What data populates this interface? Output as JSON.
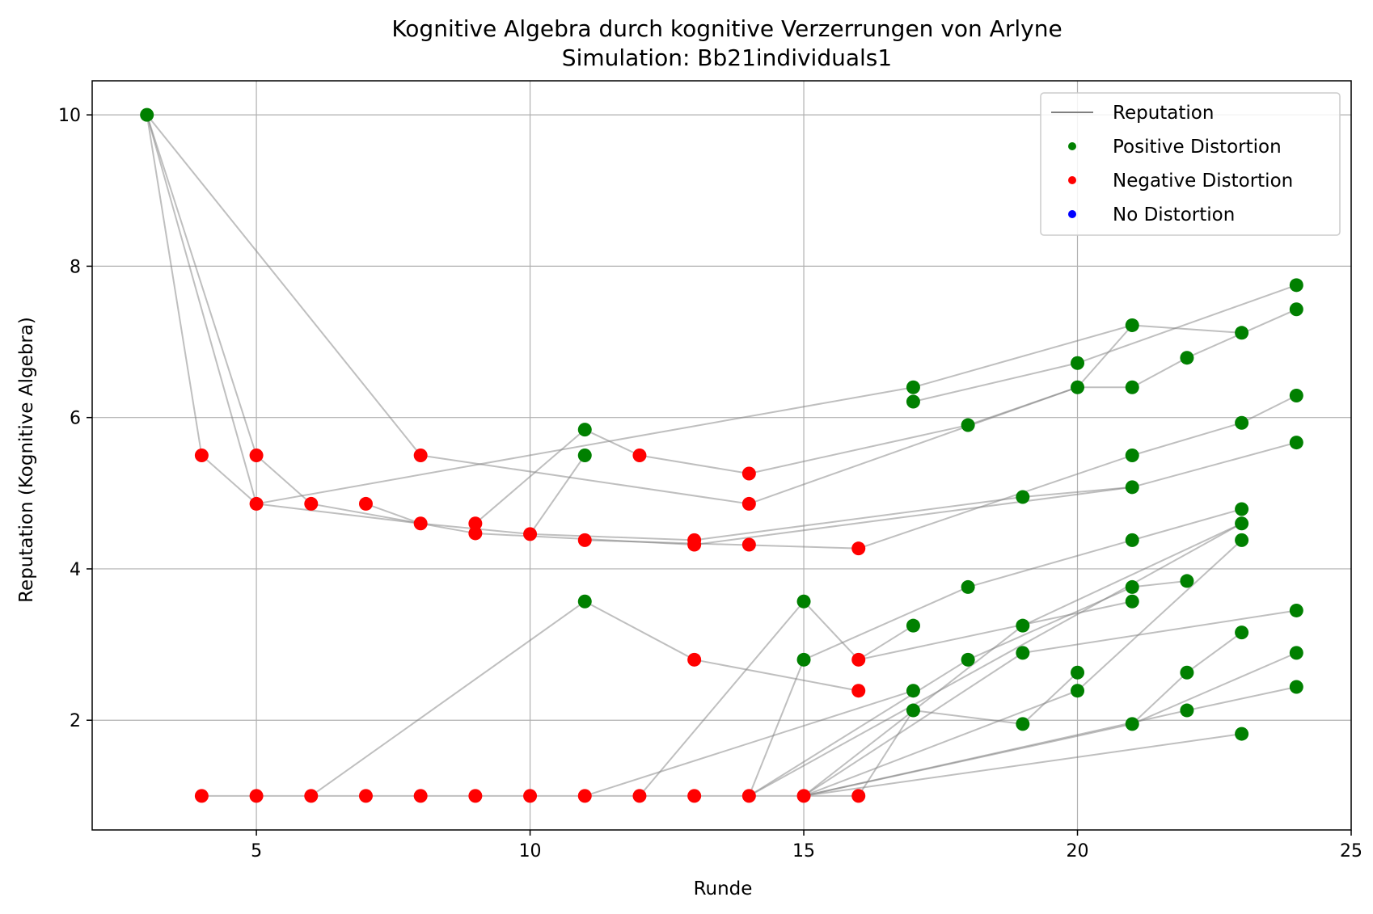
{
  "chart_data": {
    "type": "scatter",
    "title": "Kognitive Algebra durch kognitive Verzerrungen von Arlyne",
    "subtitle": "Simulation: Bb21individuals1",
    "xlabel": "Runde",
    "ylabel": "Reputation (Kognitive Algebra)",
    "xlim": [
      2,
      25
    ],
    "ylim": [
      0.55,
      10.45
    ],
    "xticks": [
      5,
      10,
      15,
      20,
      25
    ],
    "yticks": [
      2,
      4,
      6,
      8,
      10
    ],
    "grid": true,
    "legend_position": "top-right",
    "legend": [
      {
        "label": "Reputation",
        "kind": "line",
        "color": "#808080"
      },
      {
        "label": "Positive Distortion",
        "kind": "marker",
        "color": "#008000"
      },
      {
        "label": "Negative Distortion",
        "kind": "marker",
        "color": "#ff0000"
      },
      {
        "label": "No Distortion",
        "kind": "marker",
        "color": "#0000ff"
      }
    ],
    "colors": {
      "positive": "#008000",
      "negative": "#ff0000",
      "none": "#0000ff",
      "line": "#808080",
      "grid": "#b0b0b0"
    },
    "line_segments": [
      [
        [
          3,
          10
        ],
        [
          4,
          5.5
        ]
      ],
      [
        [
          3,
          10
        ],
        [
          5,
          5.5
        ]
      ],
      [
        [
          3,
          10
        ],
        [
          5,
          4.86
        ]
      ],
      [
        [
          3,
          10
        ],
        [
          8,
          5.5
        ]
      ],
      [
        [
          4,
          5.5
        ],
        [
          5,
          4.86
        ]
      ],
      [
        [
          5,
          5.5
        ],
        [
          6,
          4.86
        ]
      ],
      [
        [
          5,
          4.86
        ],
        [
          8,
          4.6
        ]
      ],
      [
        [
          6,
          4.86
        ],
        [
          9,
          4.47
        ]
      ],
      [
        [
          7,
          4.86
        ],
        [
          8,
          4.6
        ]
      ],
      [
        [
          8,
          4.6
        ],
        [
          10,
          4.46
        ]
      ],
      [
        [
          9,
          4.6
        ],
        [
          11,
          5.84
        ]
      ],
      [
        [
          9,
          4.47
        ],
        [
          13,
          4.32
        ]
      ],
      [
        [
          10,
          4.46
        ],
        [
          11,
          5.5
        ]
      ],
      [
        [
          10,
          4.46
        ],
        [
          13,
          4.38
        ]
      ],
      [
        [
          5,
          4.86
        ],
        [
          17,
          6.4
        ]
      ],
      [
        [
          11,
          5.84
        ],
        [
          12,
          5.5
        ]
      ],
      [
        [
          12,
          5.5
        ],
        [
          14,
          5.26
        ]
      ],
      [
        [
          8,
          5.5
        ],
        [
          14,
          4.86
        ]
      ],
      [
        [
          14,
          5.26
        ],
        [
          18,
          5.9
        ]
      ],
      [
        [
          14,
          4.86
        ],
        [
          20,
          6.4
        ]
      ],
      [
        [
          13,
          4.32
        ],
        [
          21,
          5.08
        ]
      ],
      [
        [
          11,
          4.38
        ],
        [
          16,
          4.27
        ]
      ],
      [
        [
          16,
          4.27
        ],
        [
          21,
          5.5
        ]
      ],
      [
        [
          17,
          6.4
        ],
        [
          21,
          7.22
        ]
      ],
      [
        [
          17,
          6.21
        ],
        [
          20,
          6.72
        ]
      ],
      [
        [
          18,
          5.9
        ],
        [
          20,
          6.4
        ]
      ],
      [
        [
          20,
          6.4
        ],
        [
          21,
          7.22
        ]
      ],
      [
        [
          20,
          6.72
        ],
        [
          24,
          7.75
        ]
      ],
      [
        [
          21,
          6.4
        ],
        [
          22,
          6.79
        ]
      ],
      [
        [
          22,
          6.79
        ],
        [
          24,
          7.43
        ]
      ],
      [
        [
          20,
          6.4
        ],
        [
          21,
          6.4
        ]
      ],
      [
        [
          21,
          7.22
        ],
        [
          23,
          7.12
        ]
      ],
      [
        [
          21,
          5.5
        ],
        [
          23,
          5.93
        ]
      ],
      [
        [
          23,
          5.93
        ],
        [
          24,
          6.29
        ]
      ],
      [
        [
          21,
          5.08
        ],
        [
          24,
          5.67
        ]
      ],
      [
        [
          19,
          4.95
        ],
        [
          21,
          5.08
        ]
      ],
      [
        [
          13,
          4.38
        ],
        [
          19,
          4.95
        ]
      ],
      [
        [
          4,
          1
        ],
        [
          16,
          1
        ]
      ],
      [
        [
          6,
          1
        ],
        [
          11,
          3.57
        ]
      ],
      [
        [
          11,
          3.57
        ],
        [
          13,
          2.8
        ]
      ],
      [
        [
          13,
          2.8
        ],
        [
          16,
          2.39
        ]
      ],
      [
        [
          11,
          1
        ],
        [
          17,
          2.39
        ]
      ],
      [
        [
          12,
          1
        ],
        [
          15,
          3.57
        ]
      ],
      [
        [
          15,
          3.57
        ],
        [
          16,
          2.8
        ]
      ],
      [
        [
          16,
          2.8
        ],
        [
          17,
          3.25
        ]
      ],
      [
        [
          16,
          2.8
        ],
        [
          21,
          3.57
        ]
      ],
      [
        [
          14,
          1
        ],
        [
          15,
          2.8
        ]
      ],
      [
        [
          15,
          2.8
        ],
        [
          18,
          3.76
        ]
      ],
      [
        [
          18,
          3.76
        ],
        [
          21,
          4.38
        ]
      ],
      [
        [
          21,
          4.38
        ],
        [
          23,
          4.79
        ]
      ],
      [
        [
          14,
          1
        ],
        [
          18,
          2.8
        ]
      ],
      [
        [
          18,
          2.8
        ],
        [
          21,
          3.76
        ]
      ],
      [
        [
          21,
          3.76
        ],
        [
          22,
          3.84
        ]
      ],
      [
        [
          15,
          1
        ],
        [
          19,
          3.25
        ]
      ],
      [
        [
          19,
          3.25
        ],
        [
          23,
          4.6
        ]
      ],
      [
        [
          15,
          1
        ],
        [
          19,
          2.89
        ]
      ],
      [
        [
          19,
          2.89
        ],
        [
          24,
          3.45
        ]
      ],
      [
        [
          15,
          1
        ],
        [
          21,
          1.95
        ]
      ],
      [
        [
          21,
          1.95
        ],
        [
          24,
          2.89
        ]
      ],
      [
        [
          16,
          1
        ],
        [
          17,
          2.13
        ]
      ],
      [
        [
          17,
          2.13
        ],
        [
          19,
          1.95
        ]
      ],
      [
        [
          19,
          1.95
        ],
        [
          20,
          2.63
        ]
      ],
      [
        [
          15,
          1
        ],
        [
          20,
          2.39
        ]
      ],
      [
        [
          20,
          2.39
        ],
        [
          23,
          4.38
        ]
      ],
      [
        [
          15,
          1
        ],
        [
          22,
          2.13
        ]
      ],
      [
        [
          22,
          2.13
        ],
        [
          24,
          2.44
        ]
      ],
      [
        [
          15,
          1
        ],
        [
          23,
          1.82
        ]
      ],
      [
        [
          21,
          1.95
        ],
        [
          22,
          2.63
        ]
      ],
      [
        [
          22,
          2.63
        ],
        [
          23,
          3.16
        ]
      ],
      [
        [
          14,
          1
        ],
        [
          23,
          4.6
        ]
      ]
    ],
    "positive_points": [
      [
        3,
        10
      ],
      [
        11,
        5.84
      ],
      [
        11,
        5.5
      ],
      [
        11,
        3.57
      ],
      [
        15,
        3.57
      ],
      [
        15,
        2.8
      ],
      [
        17,
        6.4
      ],
      [
        17,
        6.21
      ],
      [
        17,
        3.25
      ],
      [
        17,
        2.39
      ],
      [
        17,
        2.13
      ],
      [
        18,
        5.9
      ],
      [
        18,
        3.76
      ],
      [
        18,
        2.8
      ],
      [
        19,
        4.95
      ],
      [
        19,
        3.25
      ],
      [
        19,
        2.89
      ],
      [
        19,
        1.95
      ],
      [
        20,
        6.72
      ],
      [
        20,
        6.4
      ],
      [
        20,
        2.63
      ],
      [
        20,
        2.39
      ],
      [
        21,
        7.22
      ],
      [
        21,
        6.4
      ],
      [
        21,
        5.5
      ],
      [
        21,
        5.08
      ],
      [
        21,
        4.38
      ],
      [
        21,
        3.76
      ],
      [
        21,
        3.57
      ],
      [
        21,
        1.95
      ],
      [
        22,
        6.79
      ],
      [
        22,
        3.84
      ],
      [
        22,
        2.63
      ],
      [
        22,
        2.13
      ],
      [
        23,
        7.12
      ],
      [
        23,
        5.93
      ],
      [
        23,
        4.79
      ],
      [
        23,
        4.6
      ],
      [
        23,
        4.38
      ],
      [
        23,
        3.16
      ],
      [
        23,
        1.82
      ],
      [
        24,
        7.75
      ],
      [
        24,
        7.43
      ],
      [
        24,
        6.29
      ],
      [
        24,
        5.67
      ],
      [
        24,
        3.45
      ],
      [
        24,
        2.89
      ],
      [
        24,
        2.44
      ]
    ],
    "negative_points": [
      [
        4,
        5.5
      ],
      [
        5,
        5.5
      ],
      [
        5,
        4.86
      ],
      [
        6,
        4.86
      ],
      [
        7,
        4.86
      ],
      [
        8,
        5.5
      ],
      [
        8,
        4.6
      ],
      [
        9,
        4.6
      ],
      [
        9,
        4.47
      ],
      [
        10,
        4.46
      ],
      [
        11,
        4.38
      ],
      [
        12,
        5.5
      ],
      [
        13,
        4.38
      ],
      [
        13,
        4.32
      ],
      [
        14,
        5.26
      ],
      [
        14,
        4.86
      ],
      [
        14,
        4.32
      ],
      [
        16,
        4.27
      ],
      [
        13,
        2.8
      ],
      [
        16,
        2.8
      ],
      [
        16,
        2.39
      ],
      [
        4,
        1
      ],
      [
        5,
        1
      ],
      [
        6,
        1
      ],
      [
        7,
        1
      ],
      [
        8,
        1
      ],
      [
        9,
        1
      ],
      [
        10,
        1
      ],
      [
        11,
        1
      ],
      [
        12,
        1
      ],
      [
        13,
        1
      ],
      [
        14,
        1
      ],
      [
        15,
        1
      ],
      [
        16,
        1
      ]
    ],
    "none_points": []
  }
}
